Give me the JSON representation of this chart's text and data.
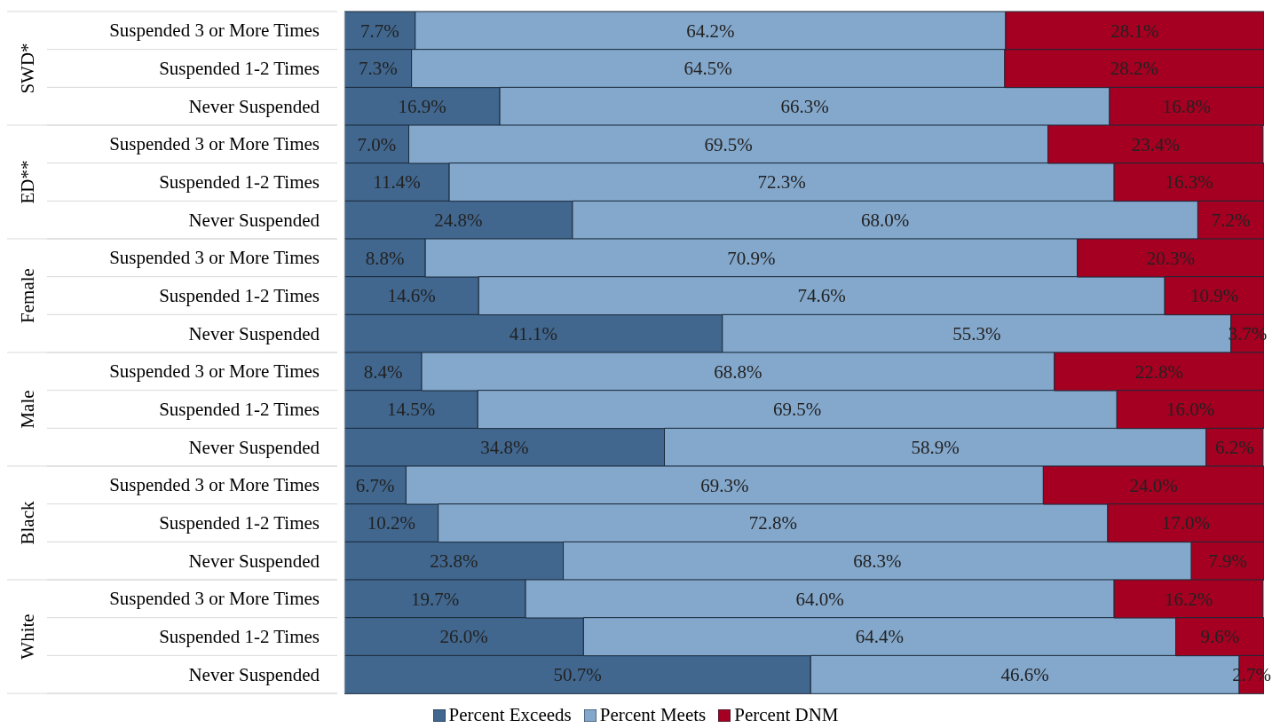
{
  "chart_data": {
    "type": "bar",
    "orientation": "horizontal",
    "stacked": true,
    "categories": [
      "Suspended 3 or More Times",
      "Suspended 1-2 Times",
      "Never Suspended",
      "Suspended 3 or More Times",
      "Suspended 1-2 Times",
      "Never Suspended",
      "Suspended 3 or More Times",
      "Suspended 1-2 Times",
      "Never Suspended",
      "Suspended 3 or More Times",
      "Suspended 1-2 Times",
      "Never Suspended",
      "Suspended 3 or More Times",
      "Suspended 1-2 Times",
      "Never Suspended",
      "Suspended 3 or More Times",
      "Suspended 1-2 Times",
      "Never Suspended"
    ],
    "annotations": [
      "SWD*",
      "ED**",
      "Female",
      "Male",
      "Black",
      "White"
    ],
    "xlim": [
      0,
      100
    ],
    "tick_labels": "y",
    "legend": "bottom",
    "grid": false,
    "series": [
      {
        "name": "Percent Exceeds",
        "color": "#41678f",
        "values": [
          7.7,
          7.3,
          16.9,
          7.0,
          11.4,
          24.8,
          8.8,
          14.6,
          41.1,
          8.4,
          14.5,
          34.8,
          6.7,
          10.2,
          23.8,
          19.7,
          26.0,
          50.7
        ],
        "value_labels": [
          "7.7%",
          "7.3%",
          "16.9%",
          "7.0%",
          "11.4%",
          "24.8%",
          "8.8%",
          "14.6%",
          "41.1%",
          "8.4%",
          "14.5%",
          "34.8%",
          "6.7%",
          "10.2%",
          "23.8%",
          "19.7%",
          "26.0%",
          "50.7%"
        ]
      },
      {
        "name": "Percent Meets",
        "color": "#84a8cc",
        "values": [
          64.2,
          64.5,
          66.3,
          69.5,
          72.3,
          68.0,
          70.9,
          74.6,
          55.3,
          68.8,
          69.5,
          58.9,
          69.3,
          72.8,
          68.3,
          64.0,
          64.4,
          46.6
        ],
        "value_labels": [
          "64.2%",
          "64.5%",
          "66.3%",
          "69.5%",
          "72.3%",
          "68.0%",
          "70.9%",
          "74.6%",
          "55.3%",
          "68.8%",
          "69.5%",
          "58.9%",
          "69.3%",
          "72.8%",
          "68.3%",
          "64.0%",
          "64.4%",
          "46.6%"
        ]
      },
      {
        "name": "Percent DNM",
        "color": "#a50021",
        "values": [
          28.1,
          28.2,
          16.8,
          23.4,
          16.3,
          7.2,
          20.3,
          10.9,
          3.7,
          22.8,
          16.0,
          6.2,
          24.0,
          17.0,
          7.9,
          16.2,
          9.6,
          2.7
        ],
        "value_labels": [
          "28.1%",
          "28.2%",
          "16.8%",
          "23.4%",
          "16.3%",
          "7.2%",
          "20.3%",
          "10.9%",
          "3.7%",
          "22.8%",
          "16.0%",
          "6.2%",
          "24.0%",
          "17.0%",
          "7.9%",
          "16.2%",
          "9.6%",
          "2.7%"
        ]
      }
    ]
  }
}
